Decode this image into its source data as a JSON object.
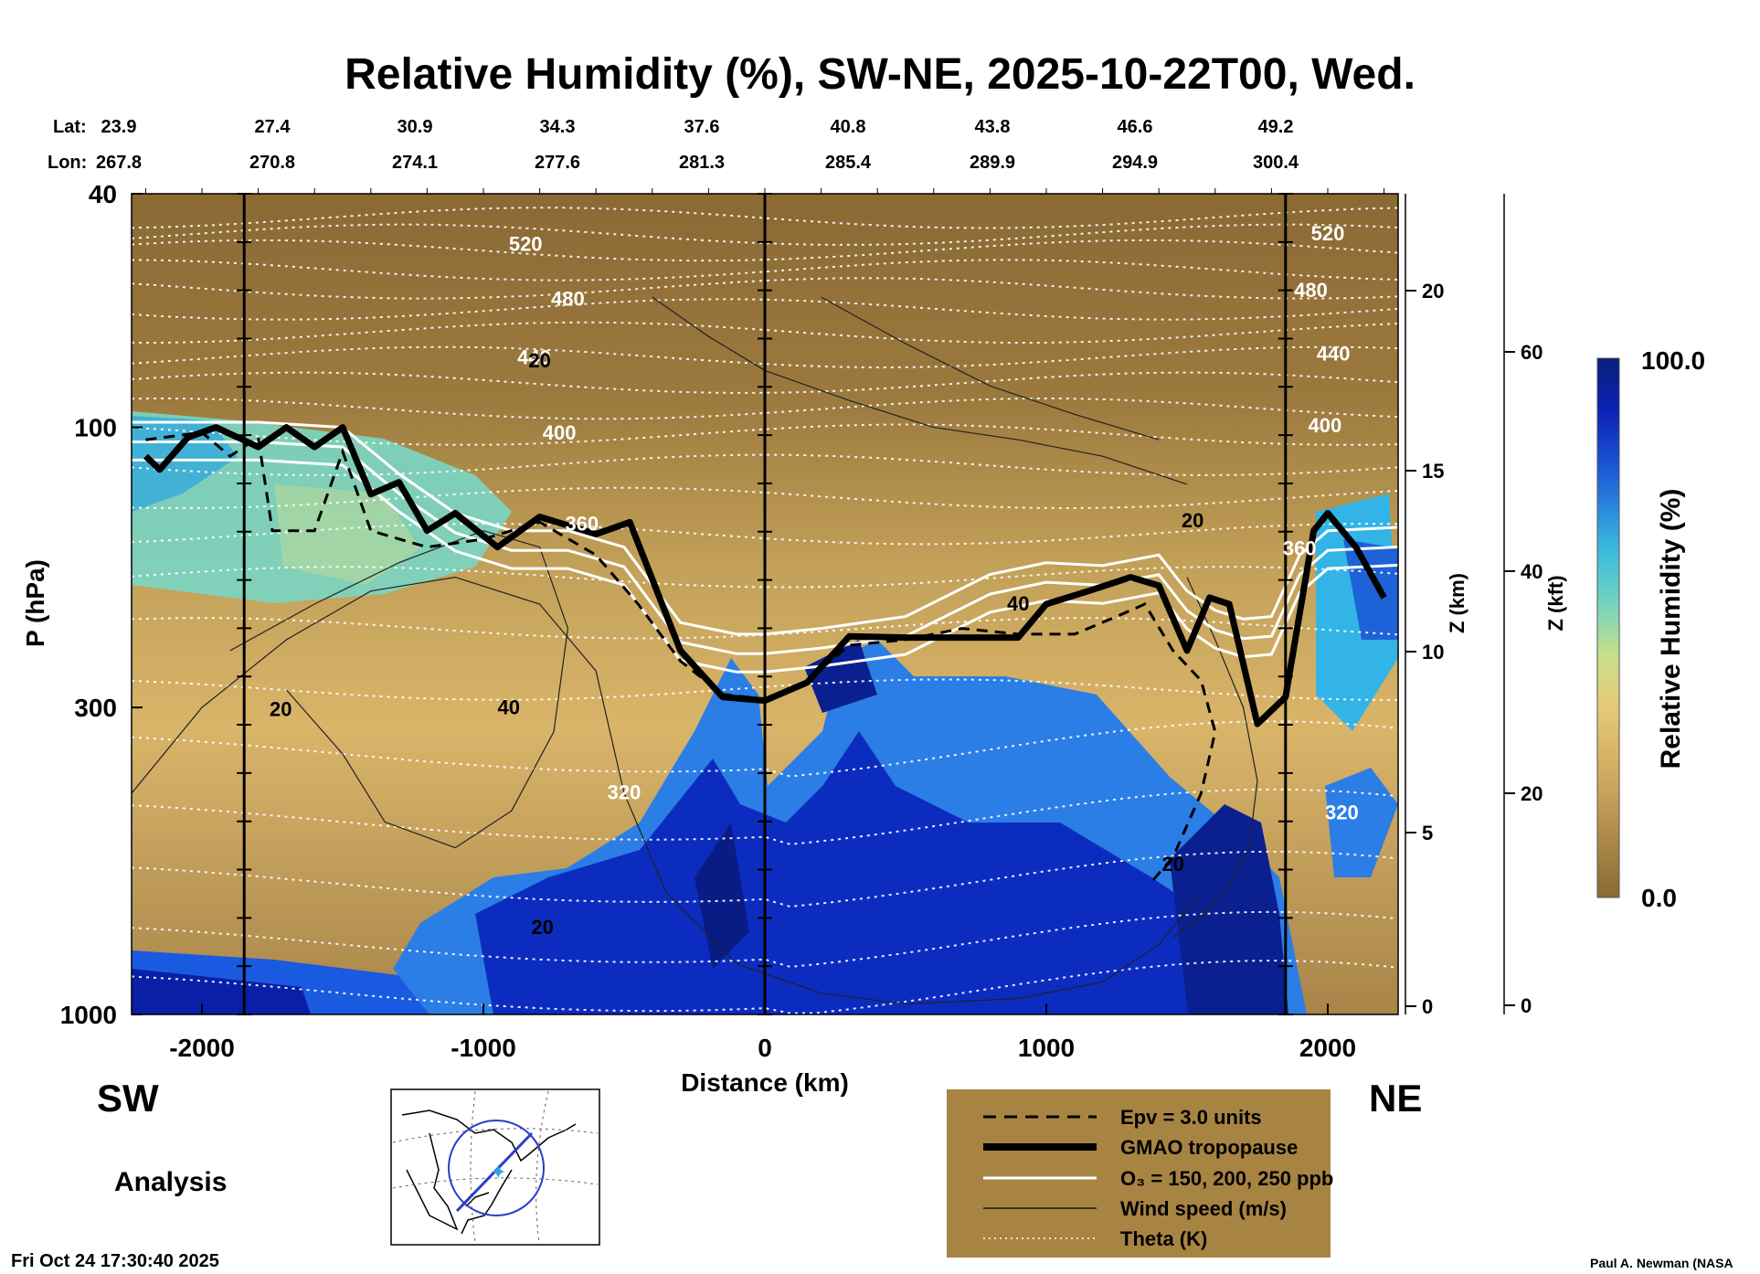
{
  "chart_data": {
    "type": "heatmap",
    "title": "Relative Humidity (%), SW-NE, 2025-10-22T00, Wed.",
    "xlabel": "Distance (km)",
    "ylabel": "P (hPa)",
    "y2label": "Z (km)",
    "y3label": "Z (kft)",
    "colorbar_label": "Relative Humidity (%)",
    "colorbar_range": [
      0.0,
      100.0
    ],
    "colorbar_ticks": [
      "100.0",
      "0.0"
    ],
    "xlim": [
      -2250,
      2250
    ],
    "ylim": [
      1000,
      40
    ],
    "y_log_scale": true,
    "x_ticks": [
      "-2000",
      "-1000",
      "0",
      "1000",
      "2000"
    ],
    "y_ticks": [
      "40",
      "100",
      "300",
      "1000"
    ],
    "z_km_ticks": [
      "20",
      "15",
      "10",
      "5",
      "0"
    ],
    "z_kft_ticks": [
      "60",
      "40",
      "20",
      "0"
    ],
    "lat_label": "Lat:",
    "lon_label": "Lon:",
    "lats": [
      "23.9",
      "27.4",
      "30.9",
      "34.3",
      "37.6",
      "40.8",
      "43.8",
      "46.6",
      "49.2"
    ],
    "lons": [
      "267.8",
      "270.8",
      "274.1",
      "277.6",
      "281.3",
      "285.4",
      "289.9",
      "294.9",
      "300.4"
    ],
    "vertical_markers_km": [
      -1850,
      0,
      1850
    ],
    "legend": [
      {
        "label": "Epv = 3.0 units",
        "style": "dashed-black"
      },
      {
        "label": "GMAO tropopause",
        "style": "thick-black"
      },
      {
        "label": "O₃ = 150, 200, 250 ppb",
        "style": "white"
      },
      {
        "label": "Wind speed (m/s)",
        "style": "thin-black"
      },
      {
        "label": "Theta (K)",
        "style": "dotted-white"
      }
    ],
    "tropopause_hpa": [
      {
        "x": -2200,
        "p": 112
      },
      {
        "x": -2150,
        "p": 118
      },
      {
        "x": -2050,
        "p": 104
      },
      {
        "x": -1950,
        "p": 100
      },
      {
        "x": -1800,
        "p": 108
      },
      {
        "x": -1700,
        "p": 100
      },
      {
        "x": -1600,
        "p": 108
      },
      {
        "x": -1500,
        "p": 100
      },
      {
        "x": -1400,
        "p": 130
      },
      {
        "x": -1300,
        "p": 124
      },
      {
        "x": -1200,
        "p": 150
      },
      {
        "x": -1100,
        "p": 140
      },
      {
        "x": -950,
        "p": 160
      },
      {
        "x": -800,
        "p": 142
      },
      {
        "x": -600,
        "p": 152
      },
      {
        "x": -480,
        "p": 145
      },
      {
        "x": -300,
        "p": 240
      },
      {
        "x": -150,
        "p": 288
      },
      {
        "x": 0,
        "p": 292
      },
      {
        "x": 150,
        "p": 272
      },
      {
        "x": 300,
        "p": 227
      },
      {
        "x": 500,
        "p": 228
      },
      {
        "x": 900,
        "p": 228
      },
      {
        "x": 1000,
        "p": 200
      },
      {
        "x": 1150,
        "p": 190
      },
      {
        "x": 1300,
        "p": 180
      },
      {
        "x": 1400,
        "p": 186
      },
      {
        "x": 1500,
        "p": 240
      },
      {
        "x": 1580,
        "p": 195
      },
      {
        "x": 1650,
        "p": 200
      },
      {
        "x": 1750,
        "p": 320
      },
      {
        "x": 1850,
        "p": 288
      },
      {
        "x": 1950,
        "p": 150
      },
      {
        "x": 2000,
        "p": 140
      },
      {
        "x": 2100,
        "p": 160
      },
      {
        "x": 2200,
        "p": 195
      }
    ],
    "theta_labels": [
      {
        "text": "520",
        "x": -850,
        "p": 50
      },
      {
        "text": "480",
        "x": -700,
        "p": 62
      },
      {
        "text": "440",
        "x": -820,
        "p": 78
      },
      {
        "text": "400",
        "x": -730,
        "p": 105
      },
      {
        "text": "360",
        "x": -650,
        "p": 150
      },
      {
        "text": "320",
        "x": -500,
        "p": 430
      },
      {
        "text": "520",
        "x": 2000,
        "p": 48
      },
      {
        "text": "480",
        "x": 1940,
        "p": 60
      },
      {
        "text": "440",
        "x": 2020,
        "p": 77
      },
      {
        "text": "400",
        "x": 1990,
        "p": 102
      },
      {
        "text": "360",
        "x": 1900,
        "p": 165
      },
      {
        "text": "320",
        "x": 2050,
        "p": 465
      }
    ],
    "wind_labels": [
      {
        "text": "20",
        "x": -800,
        "p": 79
      },
      {
        "text": "20",
        "x": -1720,
        "p": 310
      },
      {
        "text": "40",
        "x": -910,
        "p": 308
      },
      {
        "text": "20",
        "x": -790,
        "p": 730
      },
      {
        "text": "40",
        "x": 900,
        "p": 205
      },
      {
        "text": "20",
        "x": 1520,
        "p": 148
      },
      {
        "text": "20",
        "x": 1450,
        "p": 570
      }
    ],
    "labels": {
      "sw": "SW",
      "ne": "NE",
      "analysis": "Analysis",
      "timestamp": "Fri Oct 24 17:30:40 2025",
      "credit": "Paul A. Newman (NASA"
    }
  }
}
